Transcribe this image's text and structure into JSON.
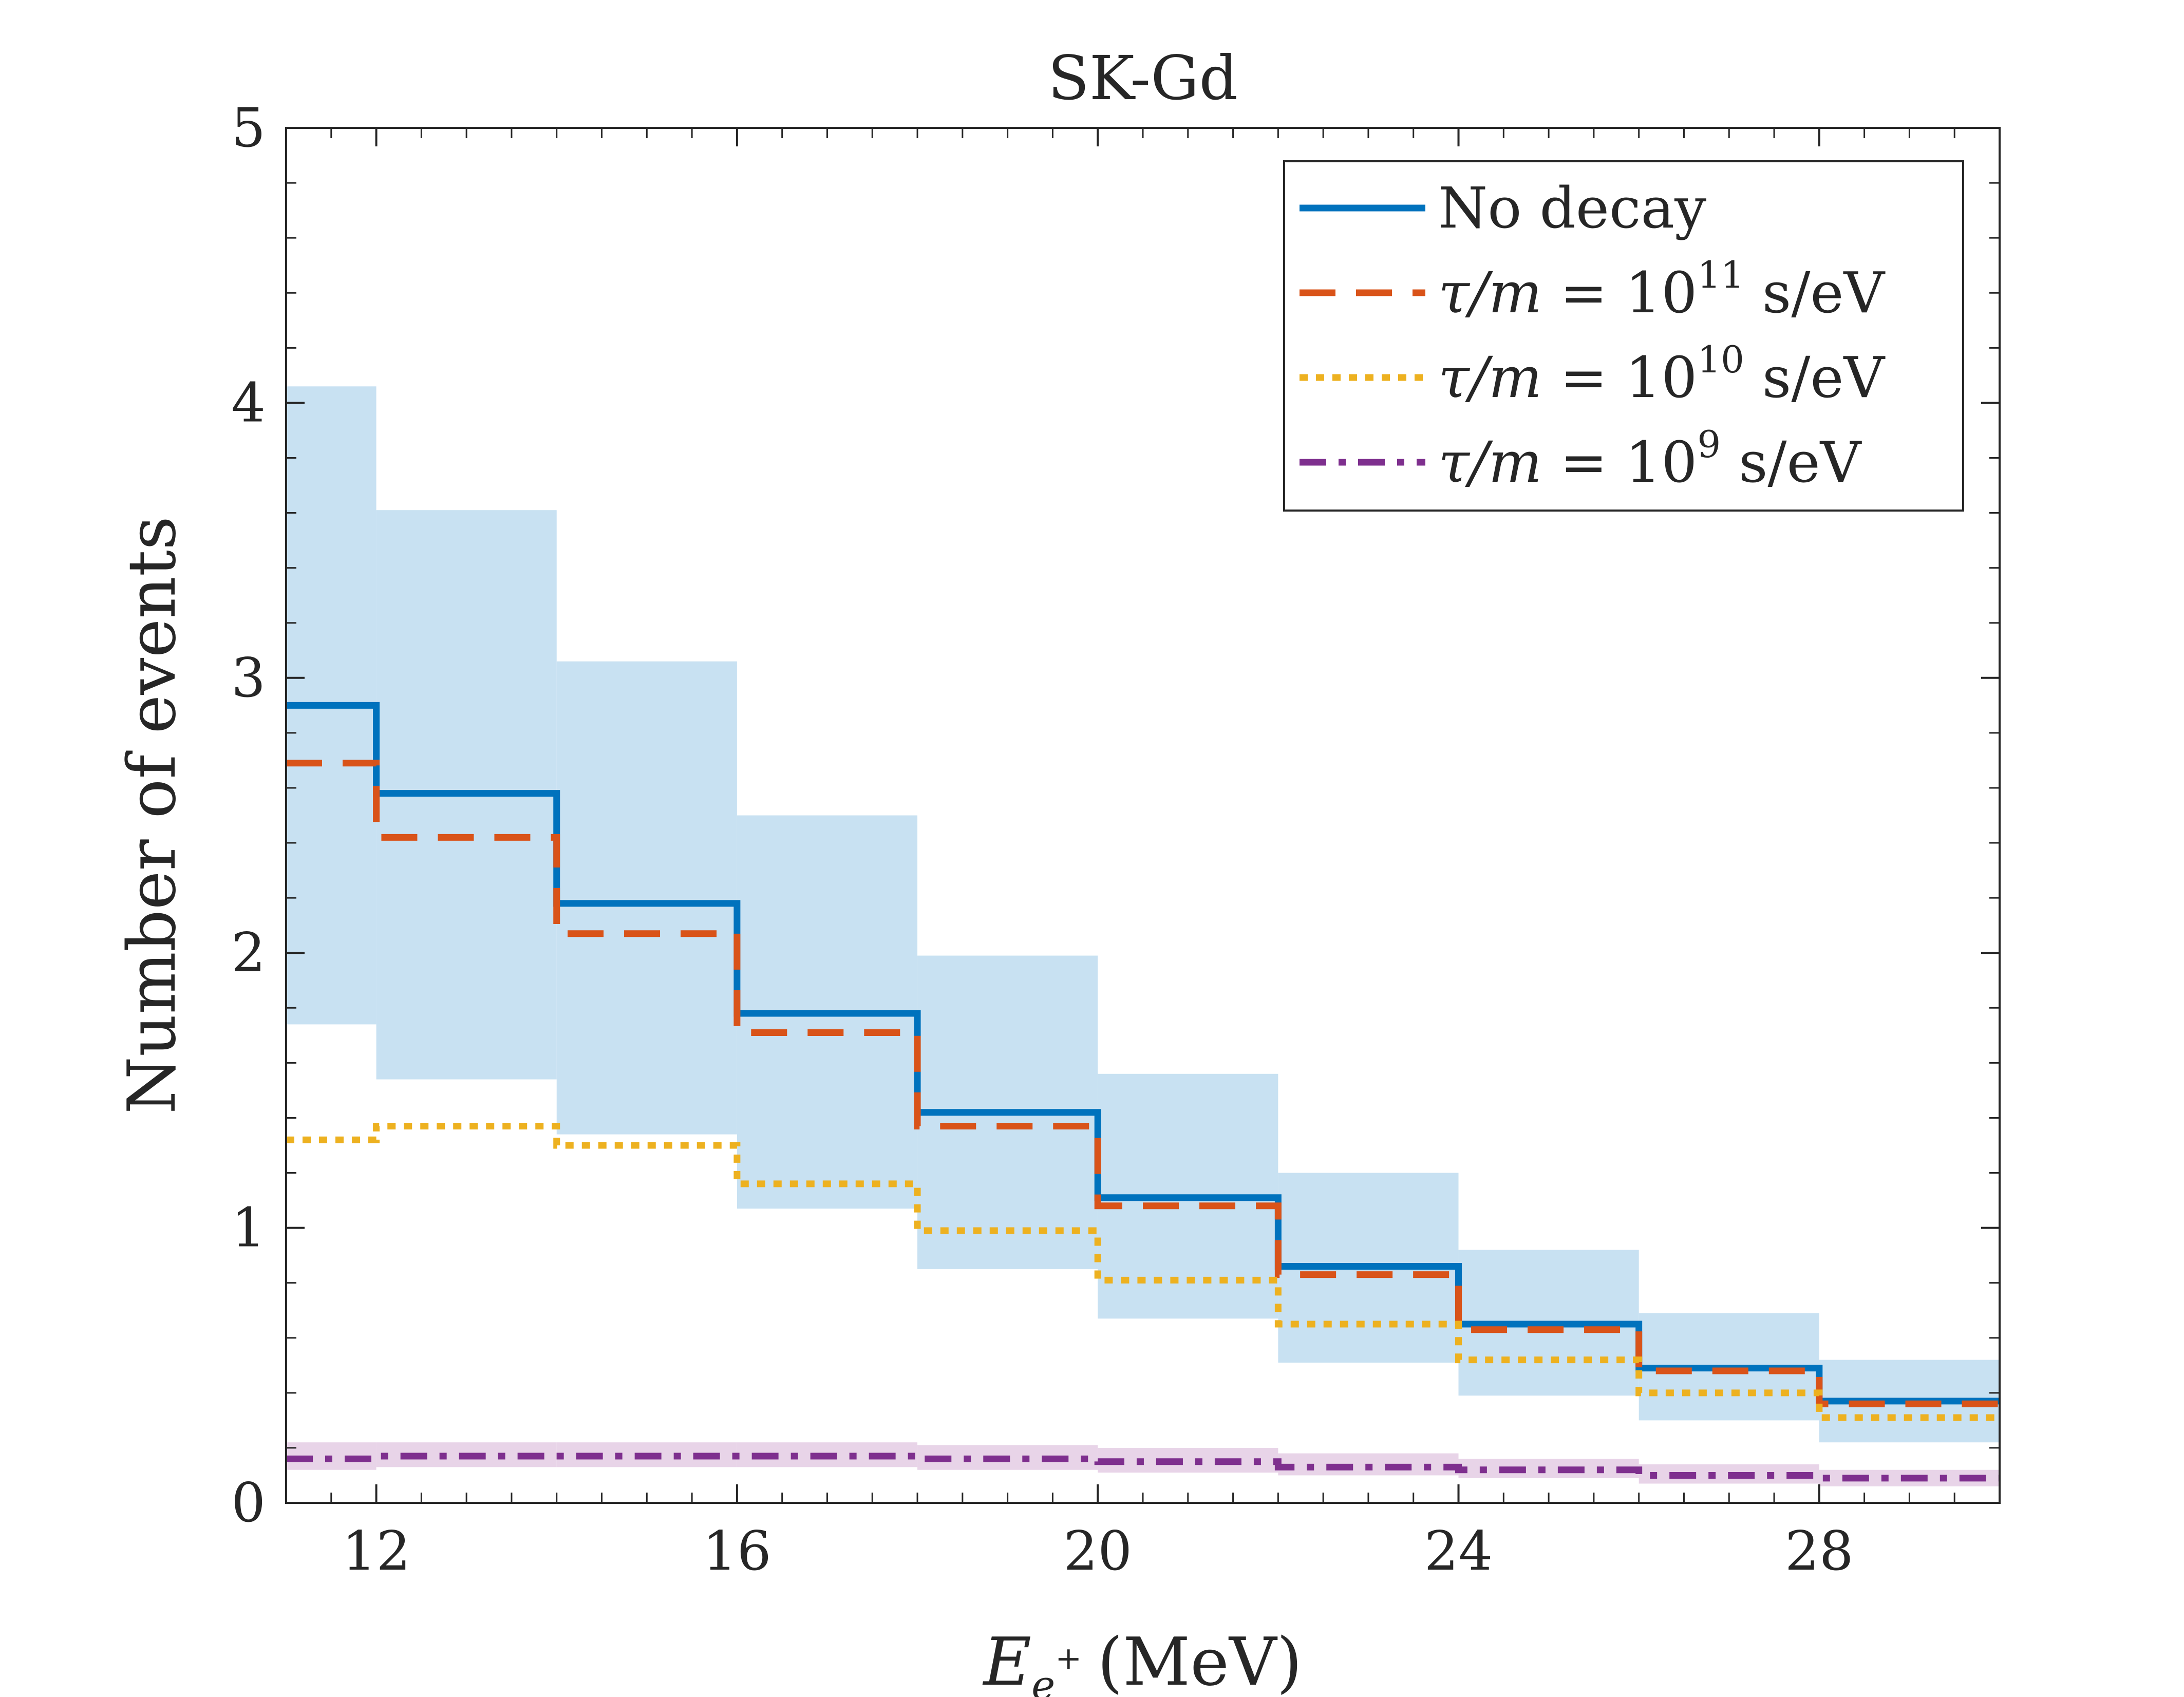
{
  "chart_data": {
    "type": "step",
    "title": "SK-Gd",
    "xlabel": "E",
    "xlabel_sub": "e",
    "xlabel_sup": "+",
    "xlabel_unit": "(MeV)",
    "ylabel": "Number of events",
    "xlim": [
      11,
      30
    ],
    "ylim": [
      0,
      5
    ],
    "xticks": [
      12,
      16,
      20,
      24,
      28
    ],
    "xtick_labels": [
      "12",
      "16",
      "20",
      "24",
      "28"
    ],
    "yticks": [
      0,
      1,
      2,
      3,
      4,
      5
    ],
    "ytick_labels": [
      "0",
      "1",
      "2",
      "3",
      "4",
      "5"
    ],
    "bin_edges": [
      11,
      12,
      14,
      16,
      18,
      20,
      22,
      24,
      26,
      28,
      30
    ],
    "legend_position": "top-right",
    "series": [
      {
        "name": "No decay",
        "legend": {
          "prefix": "No decay",
          "base": "",
          "exp": "",
          "unit": ""
        },
        "color": "#0072bd",
        "style": "solid",
        "values": [
          2.9,
          2.58,
          2.18,
          1.78,
          1.42,
          1.11,
          0.86,
          0.65,
          0.49,
          0.37
        ],
        "band_lower": [
          1.74,
          1.54,
          1.34,
          1.07,
          0.85,
          0.67,
          0.51,
          0.39,
          0.3,
          0.22
        ],
        "band_upper": [
          4.06,
          3.61,
          3.06,
          2.5,
          1.99,
          1.56,
          1.2,
          0.92,
          0.69,
          0.52
        ],
        "band_color": "#c8e1f2"
      },
      {
        "name": "tau/m = 10^11 s/eV",
        "legend": {
          "prefix": "τ/m = ",
          "base": "10",
          "exp": "11",
          "unit": " s/eV"
        },
        "color": "#d95319",
        "style": "dashed",
        "values": [
          2.69,
          2.42,
          2.07,
          1.71,
          1.37,
          1.08,
          0.83,
          0.63,
          0.48,
          0.36
        ]
      },
      {
        "name": "tau/m = 10^10 s/eV",
        "legend": {
          "prefix": "τ/m = ",
          "base": "10",
          "exp": "10",
          "unit": " s/eV"
        },
        "color": "#edb120",
        "style": "dotted",
        "values": [
          1.32,
          1.37,
          1.3,
          1.16,
          0.99,
          0.81,
          0.65,
          0.52,
          0.4,
          0.31
        ]
      },
      {
        "name": "tau/m = 10^9 s/eV",
        "legend": {
          "prefix": "τ/m = ",
          "base": "10",
          "exp": "9",
          "unit": " s/eV"
        },
        "color": "#7e2f8e",
        "style": "dashdot",
        "values": [
          0.16,
          0.17,
          0.17,
          0.17,
          0.16,
          0.15,
          0.13,
          0.12,
          0.1,
          0.09
        ],
        "band_lower": [
          0.12,
          0.13,
          0.13,
          0.13,
          0.12,
          0.11,
          0.1,
          0.09,
          0.07,
          0.06
        ],
        "band_upper": [
          0.22,
          0.22,
          0.22,
          0.22,
          0.21,
          0.2,
          0.18,
          0.16,
          0.14,
          0.12
        ],
        "band_color": "#e8d4e8"
      }
    ]
  }
}
